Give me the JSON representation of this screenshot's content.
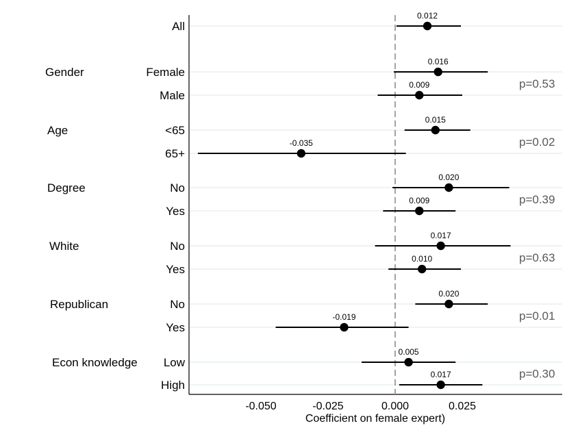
{
  "chart_data": {
    "type": "scatter",
    "subtype": "coefficient-plot-horizontal-with-ci",
    "xlabel": "Coefficient on female expert)",
    "xlim": [
      -0.077,
      0.042
    ],
    "xticks": [
      -0.05,
      -0.025,
      0.0,
      0.025
    ],
    "xtick_labels": [
      "-0.050",
      "-0.025",
      "0.000",
      "0.025"
    ],
    "reference_line": 0.0,
    "grid": "horizontal-light",
    "color": "#000000",
    "rows": [
      {
        "group": "",
        "label": "All",
        "value": 0.012,
        "value_label": "0.012",
        "ci": [
          0.0005,
          0.0245
        ]
      },
      {
        "group": "Gender",
        "label": "Female",
        "value": 0.016,
        "value_label": "0.016",
        "ci": [
          -0.0005,
          0.0345
        ]
      },
      {
        "group": "Gender",
        "label": "Male",
        "value": 0.009,
        "value_label": "0.009",
        "ci": [
          -0.0065,
          0.025
        ]
      },
      {
        "group": "Age",
        "label": "<65",
        "value": 0.015,
        "value_label": "0.015",
        "ci": [
          0.0035,
          0.028
        ]
      },
      {
        "group": "Age",
        "label": "65+",
        "value": -0.035,
        "value_label": "-0.035",
        "ci": [
          -0.0735,
          0.004
        ]
      },
      {
        "group": "Degree",
        "label": "No",
        "value": 0.02,
        "value_label": "0.020",
        "ci": [
          -0.001,
          0.0425
        ]
      },
      {
        "group": "Degree",
        "label": "Yes",
        "value": 0.009,
        "value_label": "0.009",
        "ci": [
          -0.0045,
          0.0225
        ]
      },
      {
        "group": "White",
        "label": "No",
        "value": 0.017,
        "value_label": "0.017",
        "ci": [
          -0.0075,
          0.043
        ]
      },
      {
        "group": "White",
        "label": "Yes",
        "value": 0.01,
        "value_label": "0.010",
        "ci": [
          -0.0025,
          0.0245
        ]
      },
      {
        "group": "Republican",
        "label": "No",
        "value": 0.02,
        "value_label": "0.020",
        "ci": [
          0.0075,
          0.0345
        ]
      },
      {
        "group": "Republican",
        "label": "Yes",
        "value": -0.019,
        "value_label": "-0.019",
        "ci": [
          -0.0445,
          0.005
        ]
      },
      {
        "group": "Econ knowledge",
        "label": "Low",
        "value": 0.005,
        "value_label": "0.005",
        "ci": [
          -0.0125,
          0.0225
        ]
      },
      {
        "group": "Econ knowledge",
        "label": "High",
        "value": 0.017,
        "value_label": "0.017",
        "ci": [
          0.0015,
          0.0325
        ]
      }
    ],
    "groups": [
      {
        "name": "Gender",
        "p_value": "p=0.53"
      },
      {
        "name": "Age",
        "p_value": "p=0.02"
      },
      {
        "name": "Degree",
        "p_value": "p=0.39"
      },
      {
        "name": "White",
        "p_value": "p=0.63"
      },
      {
        "name": "Republican",
        "p_value": "p=0.01"
      },
      {
        "name": "Econ knowledge",
        "p_value": "p=0.30"
      }
    ]
  }
}
